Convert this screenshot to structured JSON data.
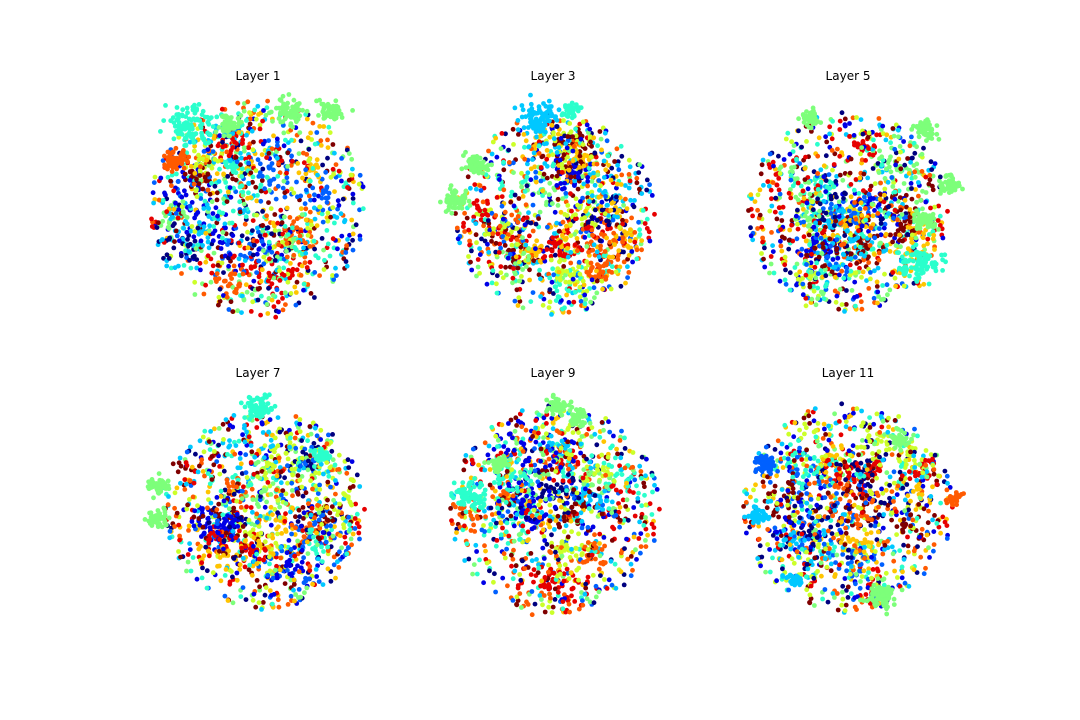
{
  "figure": {
    "background": "#ffffff",
    "grid_layout": "2 rows x 3 columns",
    "axes_visible": false
  },
  "chart_data": [
    {
      "type": "scatter",
      "title": "Layer 1",
      "colormap": "jet",
      "cluster_structure": "mixed blob with a few separated green/cyan clusters at top",
      "num_classes": 10
    },
    {
      "type": "scatter",
      "title": "Layer 3",
      "colormap": "jet",
      "cluster_structure": "mixed blob with a few separated green clusters at left",
      "num_classes": 10
    },
    {
      "type": "scatter",
      "title": "Layer 5",
      "colormap": "jet",
      "cluster_structure": "blob with separated green and cyan clusters at right",
      "num_classes": 10
    },
    {
      "type": "scatter",
      "title": "Layer 7",
      "colormap": "jet",
      "cluster_structure": "mixed blob with separated green clusters at left",
      "num_classes": 10
    },
    {
      "type": "scatter",
      "title": "Layer 9",
      "colormap": "jet",
      "cluster_structure": "mixed blob with a few separated clusters at top and left",
      "num_classes": 10
    },
    {
      "type": "scatter",
      "title": "Layer 11",
      "colormap": "jet",
      "cluster_structure": "diffuse blob with many small separated clusters at edges",
      "num_classes": 10
    }
  ],
  "palette": [
    "#00007f",
    "#0000e6",
    "#0060ff",
    "#00c8ff",
    "#2affcc",
    "#7dff7a",
    "#ccff29",
    "#ffc400",
    "#ff5a00",
    "#e60000",
    "#7f0000"
  ]
}
